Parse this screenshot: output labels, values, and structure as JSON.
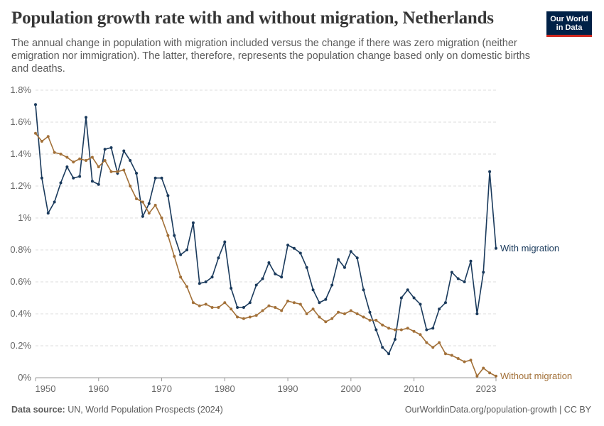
{
  "header": {
    "title": "Population growth rate with and without migration, Netherlands",
    "subtitle": "The annual change in population with migration included versus the change if there was zero migration (neither emigration nor immigration). The latter, therefore, represents the population change based only on domestic births and deaths."
  },
  "logo": {
    "line1": "Our World",
    "line2": "in Data"
  },
  "footer": {
    "source_label": "Data source:",
    "source_text": "UN, World Population Prospects (2024)",
    "url": "OurWorldinData.org/population-growth | CC BY"
  },
  "colors": {
    "with_migration": "#1a3a5c",
    "without_migration": "#a27038",
    "grid": "#dddddd",
    "text": "#666666"
  },
  "chart_data": {
    "type": "line",
    "title": "Population growth rate with and without migration, Netherlands",
    "xlabel": "",
    "ylabel": "",
    "xlim": [
      1950,
      2023
    ],
    "ylim": [
      0,
      1.8
    ],
    "y_ticks": [
      0,
      0.2,
      0.4,
      0.6,
      0.8,
      1,
      1.2,
      1.4,
      1.6,
      1.8
    ],
    "y_tick_labels": [
      "0%",
      "0.2%",
      "0.4%",
      "0.6%",
      "0.8%",
      "1%",
      "1.2%",
      "1.4%",
      "1.6%",
      "1.8%"
    ],
    "x_ticks": [
      1950,
      1960,
      1970,
      1980,
      1990,
      2000,
      2010,
      2023
    ],
    "x_tick_labels": [
      "1950",
      "1960",
      "1970",
      "1980",
      "1990",
      "2000",
      "2010",
      "2023"
    ],
    "grid": true,
    "x": [
      1950,
      1951,
      1952,
      1953,
      1954,
      1955,
      1956,
      1957,
      1958,
      1959,
      1960,
      1961,
      1962,
      1963,
      1964,
      1965,
      1966,
      1967,
      1968,
      1969,
      1970,
      1971,
      1972,
      1973,
      1974,
      1975,
      1976,
      1977,
      1978,
      1979,
      1980,
      1981,
      1982,
      1983,
      1984,
      1985,
      1986,
      1987,
      1988,
      1989,
      1990,
      1991,
      1992,
      1993,
      1994,
      1995,
      1996,
      1997,
      1998,
      1999,
      2000,
      2001,
      2002,
      2003,
      2004,
      2005,
      2006,
      2007,
      2008,
      2009,
      2010,
      2011,
      2012,
      2013,
      2014,
      2015,
      2016,
      2017,
      2018,
      2019,
      2020,
      2021,
      2022,
      2023
    ],
    "series": [
      {
        "name": "With migration",
        "color": "#1a3a5c",
        "values": [
          1.71,
          1.25,
          1.03,
          1.1,
          1.22,
          1.32,
          1.25,
          1.26,
          1.63,
          1.23,
          1.21,
          1.43,
          1.44,
          1.28,
          1.42,
          1.36,
          1.28,
          1.01,
          1.09,
          1.25,
          1.25,
          1.14,
          0.89,
          0.77,
          0.8,
          0.97,
          0.59,
          0.6,
          0.63,
          0.75,
          0.85,
          0.56,
          0.44,
          0.44,
          0.47,
          0.58,
          0.62,
          0.72,
          0.65,
          0.63,
          0.83,
          0.81,
          0.78,
          0.69,
          0.55,
          0.47,
          0.49,
          0.58,
          0.74,
          0.69,
          0.79,
          0.75,
          0.55,
          0.41,
          0.3,
          0.19,
          0.15,
          0.24,
          0.5,
          0.55,
          0.5,
          0.46,
          0.3,
          0.31,
          0.43,
          0.47,
          0.66,
          0.62,
          0.6,
          0.73,
          0.4,
          0.66,
          1.29,
          0.81
        ]
      },
      {
        "name": "Without migration",
        "color": "#a27038",
        "values": [
          1.53,
          1.48,
          1.51,
          1.41,
          1.4,
          1.38,
          1.35,
          1.37,
          1.36,
          1.38,
          1.32,
          1.36,
          1.29,
          1.29,
          1.3,
          1.2,
          1.12,
          1.1,
          1.03,
          1.08,
          1.0,
          0.89,
          0.76,
          0.63,
          0.57,
          0.47,
          0.45,
          0.46,
          0.44,
          0.44,
          0.47,
          0.43,
          0.38,
          0.37,
          0.38,
          0.39,
          0.42,
          0.45,
          0.44,
          0.42,
          0.48,
          0.47,
          0.46,
          0.4,
          0.43,
          0.38,
          0.35,
          0.37,
          0.41,
          0.4,
          0.42,
          0.4,
          0.38,
          0.36,
          0.36,
          0.33,
          0.31,
          0.3,
          0.3,
          0.31,
          0.29,
          0.27,
          0.22,
          0.19,
          0.22,
          0.15,
          0.14,
          0.12,
          0.1,
          0.11,
          0.01,
          0.06,
          0.03,
          0.01
        ]
      }
    ]
  }
}
